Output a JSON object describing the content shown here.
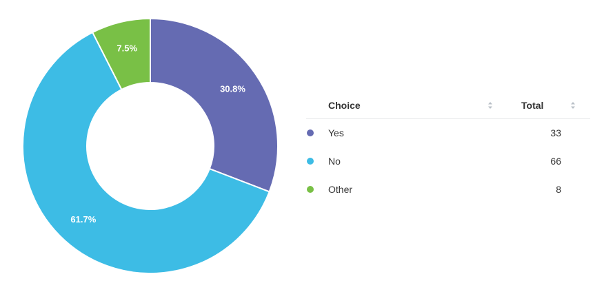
{
  "chart_data": {
    "type": "pie",
    "variant": "donut",
    "title": "",
    "categories": [
      "Yes",
      "No",
      "Other"
    ],
    "values": [
      33,
      66,
      8
    ],
    "percent_labels": [
      "30.8%",
      "61.7%",
      "7.5%"
    ],
    "colors": [
      "#656bb2",
      "#3dbce5",
      "#79c046"
    ],
    "legend_position": "right",
    "start_angle_deg": 0,
    "direction": "clockwise"
  },
  "table": {
    "headers": {
      "choice": "Choice",
      "total": "Total"
    },
    "sort_icon": "sort-updown-icon",
    "rows": [
      {
        "choice": "Yes",
        "total": "33",
        "color": "#656bb2"
      },
      {
        "choice": "No",
        "total": "66",
        "color": "#3dbce5"
      },
      {
        "choice": "Other",
        "total": "8",
        "color": "#79c046"
      }
    ]
  }
}
